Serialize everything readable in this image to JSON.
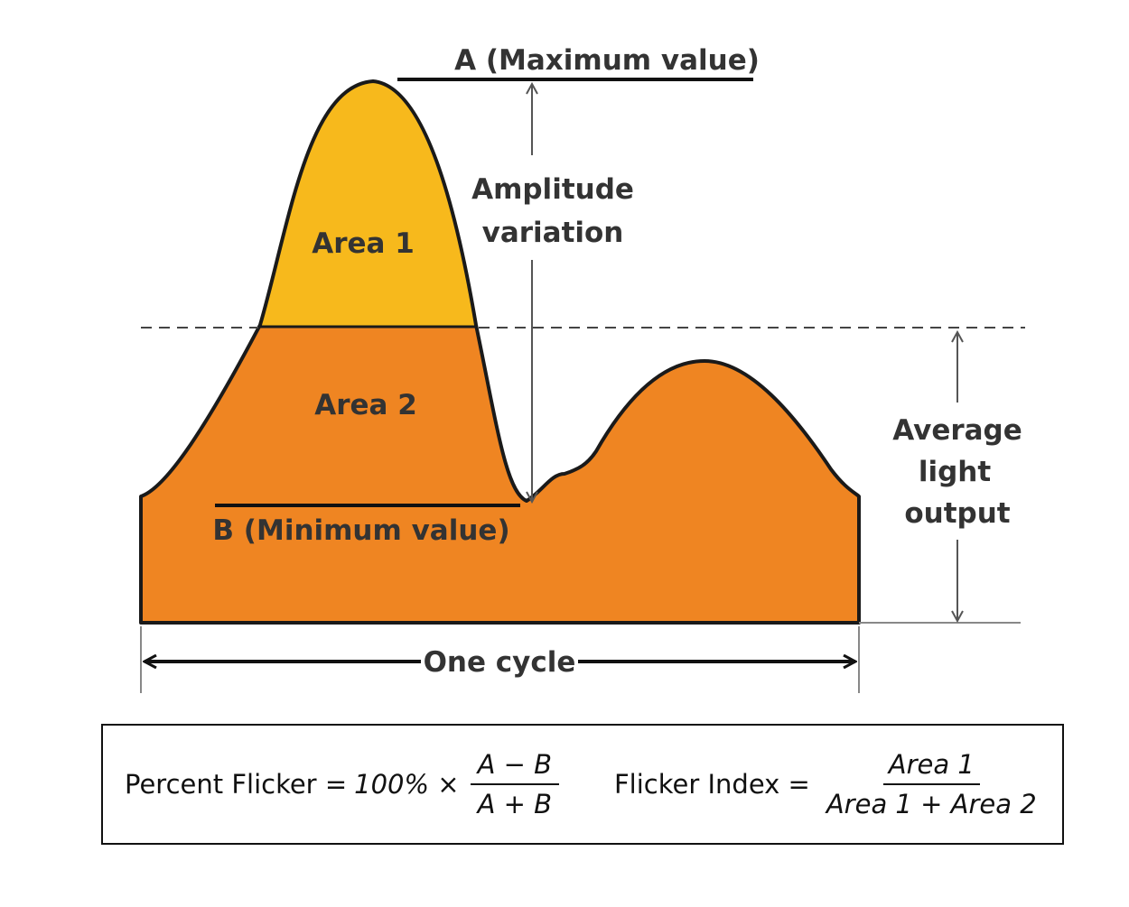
{
  "labels": {
    "max": "A (Maximum value)",
    "min": "B (Minimum value)",
    "amplitude_line1": "Amplitude",
    "amplitude_line2": "variation",
    "area1": "Area 1",
    "area2": "Area 2",
    "average_line1": "Average",
    "average_line2": "light",
    "average_line3": "output",
    "cycle": "One cycle"
  },
  "formulas": {
    "percent_flicker": {
      "label": "Percent Flicker =",
      "factor": "100% ×",
      "numerator": "A − B",
      "denominator": "A + B"
    },
    "flicker_index": {
      "label": "Flicker Index =",
      "numerator": "Area 1",
      "denominator": "Area 1 + Area 2"
    }
  },
  "colors": {
    "area1": "#f7b91c",
    "area2": "#ef8522",
    "outline": "#1a1a1a",
    "guide": "#555555",
    "text": "#333333"
  }
}
